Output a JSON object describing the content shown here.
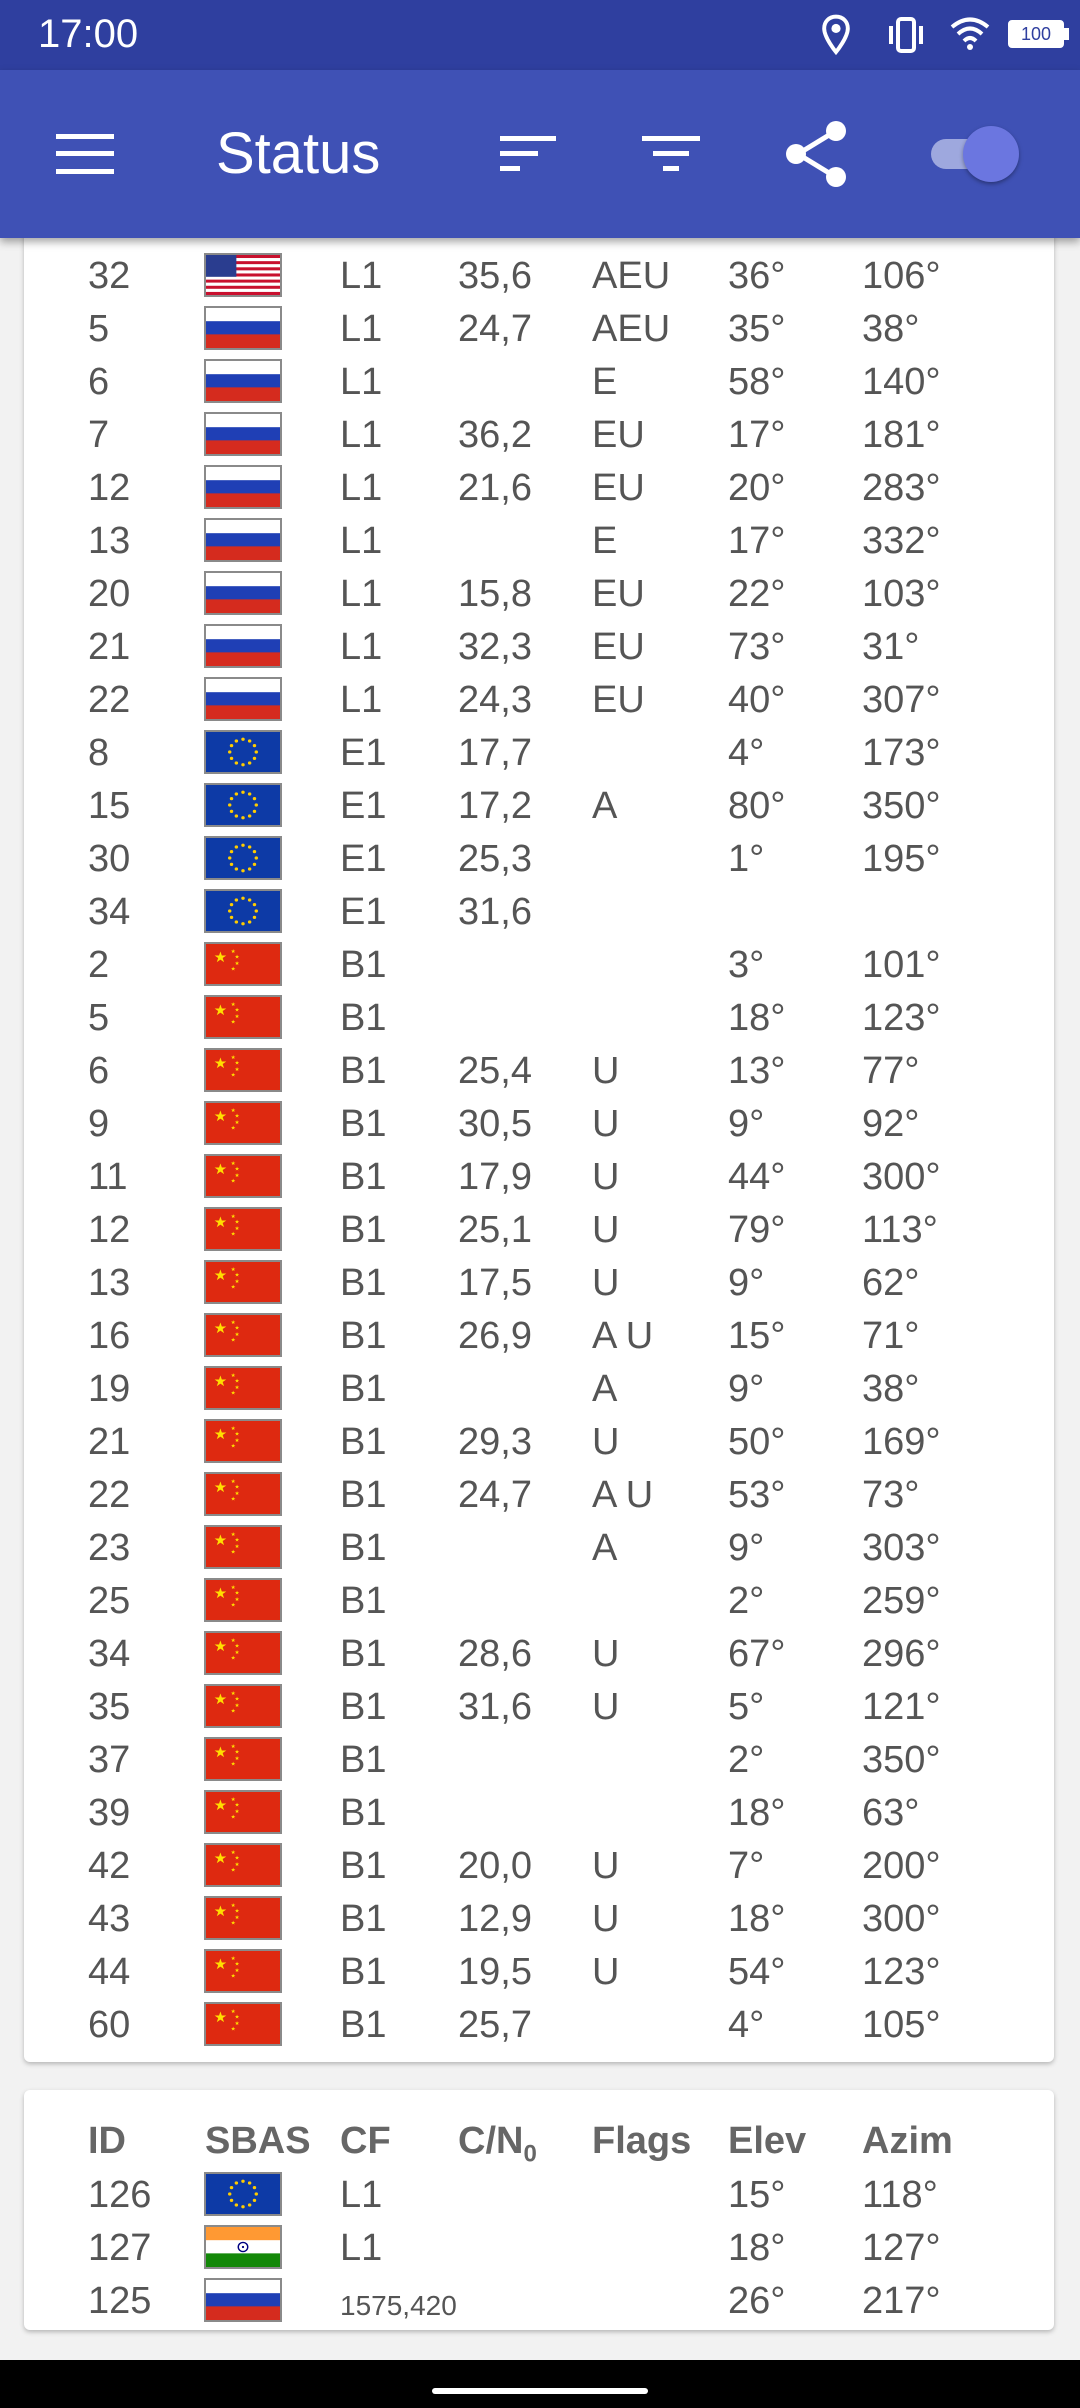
{
  "status_bar": {
    "time": "17:00",
    "battery": "100"
  },
  "app_bar": {
    "title": "Status"
  },
  "gnss_rows": [
    {
      "id": "32",
      "flag": "us",
      "cf": "L1",
      "cn": "35,6",
      "flags": "AEU",
      "elev": "36°",
      "azim": "106°"
    },
    {
      "id": "5",
      "flag": "ru",
      "cf": "L1",
      "cn": "24,7",
      "flags": "AEU",
      "elev": "35°",
      "azim": "38°"
    },
    {
      "id": "6",
      "flag": "ru",
      "cf": "L1",
      "cn": "",
      "flags": "E",
      "elev": "58°",
      "azim": "140°"
    },
    {
      "id": "7",
      "flag": "ru",
      "cf": "L1",
      "cn": "36,2",
      "flags": "EU",
      "elev": "17°",
      "azim": "181°"
    },
    {
      "id": "12",
      "flag": "ru",
      "cf": "L1",
      "cn": "21,6",
      "flags": "EU",
      "elev": "20°",
      "azim": "283°"
    },
    {
      "id": "13",
      "flag": "ru",
      "cf": "L1",
      "cn": "",
      "flags": "E",
      "elev": "17°",
      "azim": "332°"
    },
    {
      "id": "20",
      "flag": "ru",
      "cf": "L1",
      "cn": "15,8",
      "flags": "EU",
      "elev": "22°",
      "azim": "103°"
    },
    {
      "id": "21",
      "flag": "ru",
      "cf": "L1",
      "cn": "32,3",
      "flags": "EU",
      "elev": "73°",
      "azim": "31°"
    },
    {
      "id": "22",
      "flag": "ru",
      "cf": "L1",
      "cn": "24,3",
      "flags": "EU",
      "elev": "40°",
      "azim": "307°"
    },
    {
      "id": "8",
      "flag": "eu",
      "cf": "E1",
      "cn": "17,7",
      "flags": "",
      "elev": "4°",
      "azim": "173°"
    },
    {
      "id": "15",
      "flag": "eu",
      "cf": "E1",
      "cn": "17,2",
      "flags": "A",
      "elev": "80°",
      "azim": "350°"
    },
    {
      "id": "30",
      "flag": "eu",
      "cf": "E1",
      "cn": "25,3",
      "flags": "",
      "elev": "1°",
      "azim": "195°"
    },
    {
      "id": "34",
      "flag": "eu",
      "cf": "E1",
      "cn": "31,6",
      "flags": "",
      "elev": "",
      "azim": ""
    },
    {
      "id": "2",
      "flag": "cn",
      "cf": "B1",
      "cn": "",
      "flags": "",
      "elev": "3°",
      "azim": "101°"
    },
    {
      "id": "5",
      "flag": "cn",
      "cf": "B1",
      "cn": "",
      "flags": "",
      "elev": "18°",
      "azim": "123°"
    },
    {
      "id": "6",
      "flag": "cn",
      "cf": "B1",
      "cn": "25,4",
      "flags": "U",
      "elev": "13°",
      "azim": "77°"
    },
    {
      "id": "9",
      "flag": "cn",
      "cf": "B1",
      "cn": "30,5",
      "flags": "U",
      "elev": "9°",
      "azim": "92°"
    },
    {
      "id": "11",
      "flag": "cn",
      "cf": "B1",
      "cn": "17,9",
      "flags": "U",
      "elev": "44°",
      "azim": "300°"
    },
    {
      "id": "12",
      "flag": "cn",
      "cf": "B1",
      "cn": "25,1",
      "flags": "U",
      "elev": "79°",
      "azim": "113°"
    },
    {
      "id": "13",
      "flag": "cn",
      "cf": "B1",
      "cn": "17,5",
      "flags": "U",
      "elev": "9°",
      "azim": "62°"
    },
    {
      "id": "16",
      "flag": "cn",
      "cf": "B1",
      "cn": "26,9",
      "flags": "A U",
      "elev": "15°",
      "azim": "71°"
    },
    {
      "id": "19",
      "flag": "cn",
      "cf": "B1",
      "cn": "",
      "flags": "A",
      "elev": "9°",
      "azim": "38°"
    },
    {
      "id": "21",
      "flag": "cn",
      "cf": "B1",
      "cn": "29,3",
      "flags": "U",
      "elev": "50°",
      "azim": "169°"
    },
    {
      "id": "22",
      "flag": "cn",
      "cf": "B1",
      "cn": "24,7",
      "flags": "A U",
      "elev": "53°",
      "azim": "73°"
    },
    {
      "id": "23",
      "flag": "cn",
      "cf": "B1",
      "cn": "",
      "flags": "A",
      "elev": "9°",
      "azim": "303°"
    },
    {
      "id": "25",
      "flag": "cn",
      "cf": "B1",
      "cn": "",
      "flags": "",
      "elev": "2°",
      "azim": "259°"
    },
    {
      "id": "34",
      "flag": "cn",
      "cf": "B1",
      "cn": "28,6",
      "flags": "U",
      "elev": "67°",
      "azim": "296°"
    },
    {
      "id": "35",
      "flag": "cn",
      "cf": "B1",
      "cn": "31,6",
      "flags": "U",
      "elev": "5°",
      "azim": "121°"
    },
    {
      "id": "37",
      "flag": "cn",
      "cf": "B1",
      "cn": "",
      "flags": "",
      "elev": "2°",
      "azim": "350°"
    },
    {
      "id": "39",
      "flag": "cn",
      "cf": "B1",
      "cn": "",
      "flags": "",
      "elev": "18°",
      "azim": "63°"
    },
    {
      "id": "42",
      "flag": "cn",
      "cf": "B1",
      "cn": "20,0",
      "flags": "U",
      "elev": "7°",
      "azim": "200°"
    },
    {
      "id": "43",
      "flag": "cn",
      "cf": "B1",
      "cn": "12,9",
      "flags": "U",
      "elev": "18°",
      "azim": "300°"
    },
    {
      "id": "44",
      "flag": "cn",
      "cf": "B1",
      "cn": "19,5",
      "flags": "U",
      "elev": "54°",
      "azim": "123°"
    },
    {
      "id": "60",
      "flag": "cn",
      "cf": "B1",
      "cn": "25,7",
      "flags": "",
      "elev": "4°",
      "azim": "105°"
    }
  ],
  "sbas_header": {
    "id": "ID",
    "sbas": "SBAS",
    "cf": "CF",
    "cn": "C/N",
    "cn_sub": "0",
    "flags": "Flags",
    "elev": "Elev",
    "azim": "Azim"
  },
  "sbas_rows": [
    {
      "id": "126",
      "flag": "eu",
      "cf": "L1",
      "cn": "",
      "flags": "",
      "elev": "15°",
      "azim": "118°"
    },
    {
      "id": "127",
      "flag": "in",
      "cf": "L1",
      "cn": "",
      "flags": "",
      "elev": "18°",
      "azim": "127°"
    },
    {
      "id": "125",
      "flag": "ru",
      "cf": "1575,420",
      "cn": "",
      "flags": "",
      "elev": "26°",
      "azim": "217°"
    }
  ]
}
